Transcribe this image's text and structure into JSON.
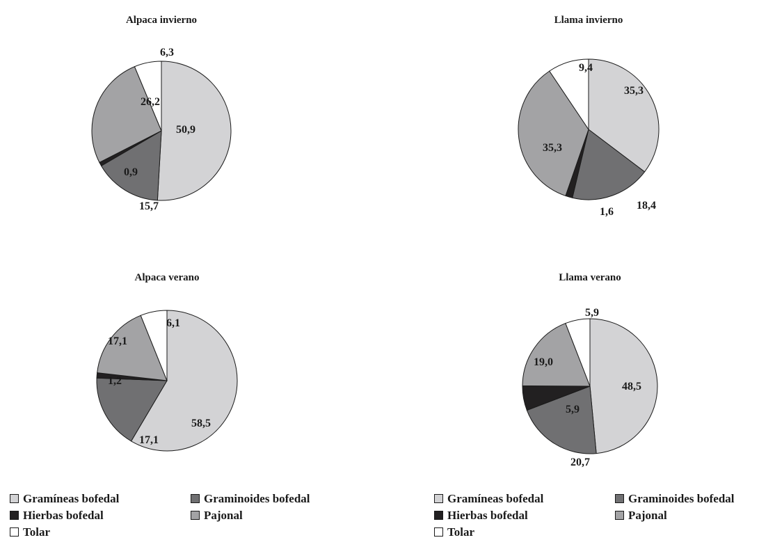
{
  "colors": {
    "Gramíneas bofedal": "#d3d3d5",
    "Graminoides bofedal": "#707072",
    "Hierbas bofedal": "#222021",
    "Pajonal": "#a3a3a5",
    "Tolar": "#ffffff"
  },
  "chart_data": [
    {
      "type": "pie",
      "title": "Alpaca invierno",
      "categories": [
        "Gramíneas bofedal",
        "Graminoides bofedal",
        "Hierbas bofedal",
        "Pajonal",
        "Tolar"
      ],
      "values": [
        50.9,
        15.7,
        0.9,
        26.2,
        6.3
      ],
      "labels": [
        "50,9",
        "15,7",
        "0,9",
        "26,2",
        "6,3"
      ]
    },
    {
      "type": "pie",
      "title": "Llama invierno",
      "categories": [
        "Gramíneas bofedal",
        "Graminoides bofedal",
        "Hierbas bofedal",
        "Pajonal",
        "Tolar"
      ],
      "values": [
        35.3,
        18.4,
        1.6,
        35.3,
        9.4
      ],
      "labels": [
        "35,3",
        "18,4",
        "1,6",
        "35,3",
        "9,4"
      ]
    },
    {
      "type": "pie",
      "title": "Alpaca verano",
      "categories": [
        "Gramíneas bofedal",
        "Graminoides bofedal",
        "Hierbas bofedal",
        "Pajonal",
        "Tolar"
      ],
      "values": [
        58.5,
        17.1,
        1.2,
        17.1,
        6.1
      ],
      "labels": [
        "58,5",
        "17,1",
        "1,2",
        "17,1",
        "6,1"
      ]
    },
    {
      "type": "pie",
      "title": "Llama verano",
      "categories": [
        "Gramíneas bofedal",
        "Graminoides bofedal",
        "Hierbas bofedal",
        "Pajonal",
        "Tolar"
      ],
      "values": [
        48.5,
        20.7,
        5.9,
        19.0,
        5.9
      ],
      "labels": [
        "48,5",
        "20,7",
        "5,9",
        "19,0",
        "5,9"
      ]
    }
  ],
  "legends": [
    {
      "items": [
        "Gramíneas bofedal",
        "Graminoides bofedal",
        "Hierbas bofedal",
        "Pajonal",
        "Tolar"
      ]
    },
    {
      "items": [
        "Gramíneas bofedal",
        "Graminoides bofedal",
        "Hierbas bofedal",
        "Pajonal",
        "Tolar"
      ]
    }
  ]
}
